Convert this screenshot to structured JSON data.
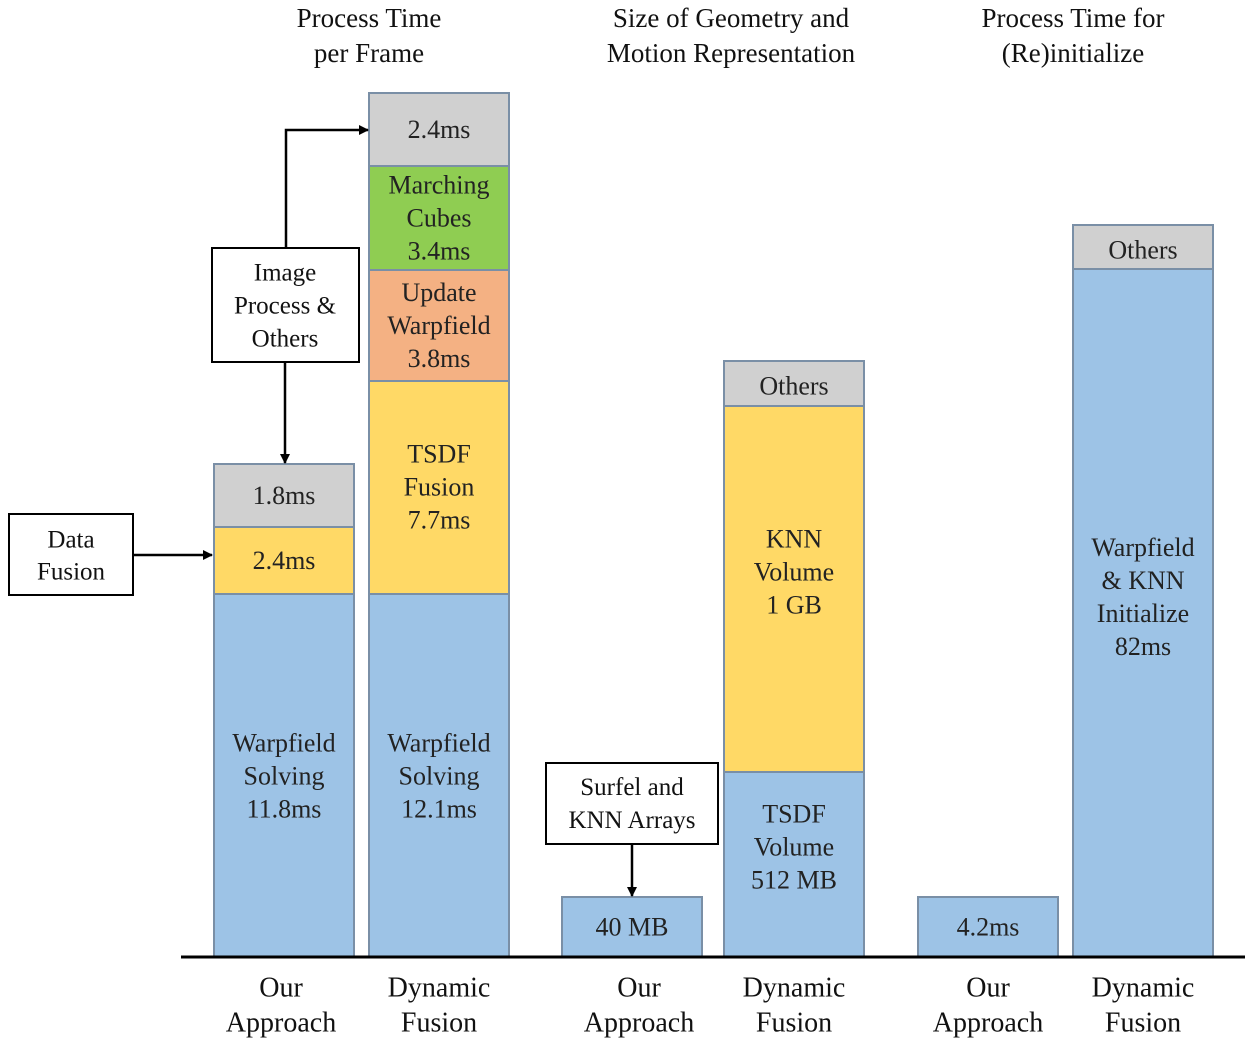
{
  "colors": {
    "blue": "#9DC3E6",
    "blue_stroke": "#4472C4",
    "yellow": "#FFD966",
    "green": "#8FCD52",
    "orange": "#F4B183",
    "gray": "#D0D0D0",
    "stroke": "#7A8FA6"
  },
  "chart_data": {
    "type": "stacked-bar",
    "groups": [
      {
        "title": [
          "Process Time",
          "per Frame"
        ],
        "bars": [
          {
            "label": [
              "Our",
              "Approach"
            ],
            "segments": [
              {
                "name": "Warpfield Solving",
                "value": 11.8,
                "text": [
                  "Warpfield",
                  "Solving",
                  "11.8ms"
                ],
                "color": "blue"
              },
              {
                "name": "Data Fusion",
                "value": 2.4,
                "text": [
                  "2.4ms"
                ],
                "color": "yellow"
              },
              {
                "name": "Image Process & Others",
                "value": 1.8,
                "text": [
                  "1.8ms"
                ],
                "color": "gray"
              }
            ]
          },
          {
            "label": [
              "Dynamic",
              "Fusion"
            ],
            "segments": [
              {
                "name": "Warpfield Solving",
                "value": 12.1,
                "text": [
                  "Warpfield",
                  "Solving",
                  "12.1ms"
                ],
                "color": "blue"
              },
              {
                "name": "TSDF Fusion",
                "value": 7.7,
                "text": [
                  "TSDF",
                  "Fusion",
                  "7.7ms"
                ],
                "color": "yellow"
              },
              {
                "name": "Update Warpfield",
                "value": 3.8,
                "text": [
                  "Update",
                  "Warpfield",
                  "3.8ms"
                ],
                "color": "orange"
              },
              {
                "name": "Marching Cubes",
                "value": 3.4,
                "text": [
                  "Marching",
                  "Cubes",
                  "3.4ms"
                ],
                "color": "green"
              },
              {
                "name": "Image Process & Others",
                "value": 2.4,
                "text": [
                  "2.4ms"
                ],
                "color": "gray"
              }
            ]
          }
        ]
      },
      {
        "title": [
          "Size of Geometry and",
          "Motion Representation"
        ],
        "bars": [
          {
            "label": [
              "Our",
              "Approach"
            ],
            "segments": [
              {
                "name": "Surfel and KNN Arrays",
                "value_text": "40 MB",
                "text": [
                  "40 MB"
                ],
                "color": "blue"
              }
            ]
          },
          {
            "label": [
              "Dynamic",
              "Fusion"
            ],
            "segments": [
              {
                "name": "TSDF Volume",
                "value_text": "512 MB",
                "text": [
                  "TSDF",
                  "Volume",
                  "512 MB"
                ],
                "color": "blue"
              },
              {
                "name": "KNN Volume",
                "value_text": "1 GB",
                "text": [
                  "KNN",
                  "Volume",
                  "1 GB"
                ],
                "color": "yellow"
              },
              {
                "name": "Others",
                "text": [
                  "Others"
                ],
                "color": "gray"
              }
            ]
          }
        ]
      },
      {
        "title": [
          "Process Time for",
          "(Re)initialize"
        ],
        "bars": [
          {
            "label": [
              "Our",
              "Approach"
            ],
            "segments": [
              {
                "name": "Initialize",
                "value": 4.2,
                "text": [
                  "4.2ms"
                ],
                "color": "blue"
              }
            ]
          },
          {
            "label": [
              "Dynamic",
              "Fusion"
            ],
            "segments": [
              {
                "name": "Warpfield & KNN Initialize",
                "value": 82,
                "text": [
                  "Warpfield",
                  "& KNN",
                  "Initialize",
                  "82ms"
                ],
                "color": "blue"
              },
              {
                "name": "Others",
                "text": [
                  "Others"
                ],
                "color": "gray"
              }
            ]
          }
        ]
      }
    ],
    "callouts": [
      {
        "id": "image-process",
        "text": [
          "Image",
          "Process &",
          "Others"
        ]
      },
      {
        "id": "data-fusion",
        "text": [
          "Data",
          "Fusion"
        ]
      },
      {
        "id": "surfel-knn",
        "text": [
          "Surfel and",
          "KNN Arrays"
        ]
      }
    ]
  }
}
